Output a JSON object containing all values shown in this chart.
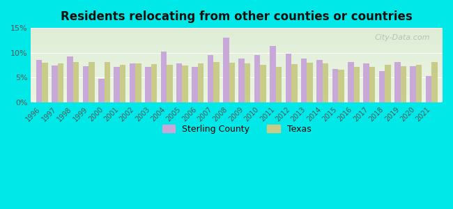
{
  "title": "Residents relocating from other counties or countries",
  "years": [
    1996,
    1997,
    1998,
    1999,
    2000,
    2001,
    2002,
    2003,
    2004,
    2005,
    2006,
    2007,
    2008,
    2009,
    2010,
    2011,
    2012,
    2013,
    2014,
    2015,
    2016,
    2017,
    2018,
    2019,
    2020,
    2021
  ],
  "sterling_county": [
    8.6,
    7.5,
    9.3,
    7.3,
    4.8,
    7.2,
    7.9,
    7.1,
    10.3,
    7.9,
    7.1,
    9.5,
    13.1,
    8.8,
    9.5,
    11.4,
    9.8,
    8.8,
    8.6,
    6.8,
    8.2,
    7.8,
    6.3,
    8.2,
    7.3,
    5.3
  ],
  "texas": [
    8.0,
    7.9,
    8.1,
    8.1,
    8.1,
    7.6,
    7.9,
    7.7,
    7.6,
    7.5,
    7.8,
    8.1,
    8.0,
    7.9,
    7.6,
    7.1,
    7.7,
    8.0,
    7.9,
    6.6,
    7.2,
    7.1,
    7.6,
    7.3,
    7.6,
    8.1
  ],
  "bar_color_sterling": "#c8a8d8",
  "bar_color_texas": "#c8cc88",
  "background_color": "#00e8e8",
  "plot_bg_top": "#e8f0e0",
  "plot_bg_bottom": "#f0f8e8",
  "ylabel_ticks": [
    "0%",
    "5%",
    "10%",
    "15%"
  ],
  "yticks": [
    0,
    5,
    10,
    15
  ],
  "ylim": [
    0,
    15
  ],
  "legend_sterling": "Sterling County",
  "legend_texas": "Texas",
  "watermark": "City-Data.com"
}
